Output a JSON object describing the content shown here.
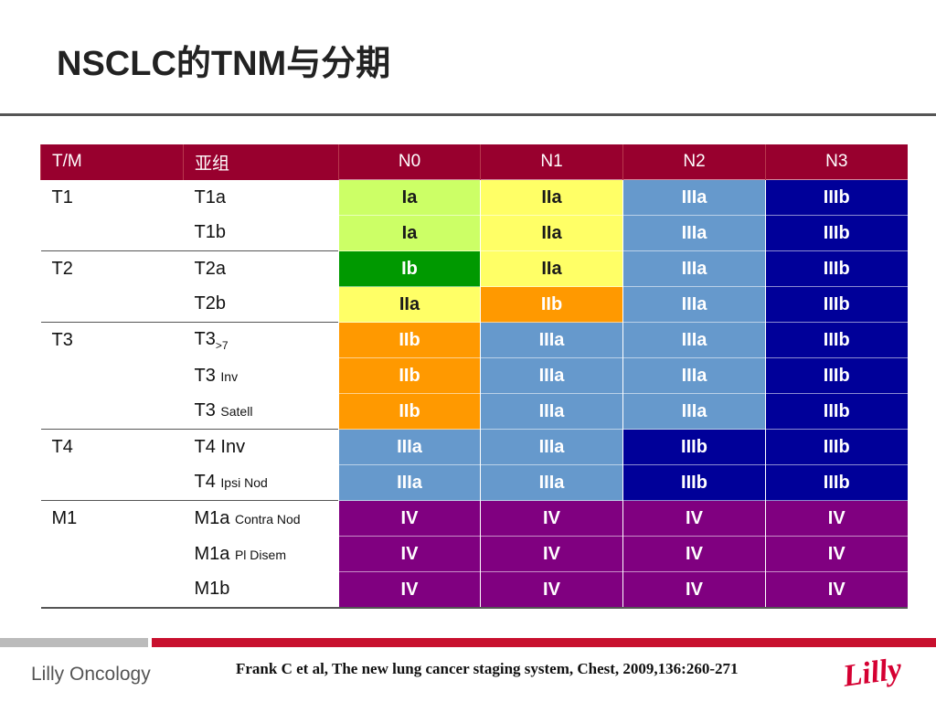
{
  "title": "NSCLC的TNM与分期",
  "table": {
    "headers": [
      "T/M",
      "亚组",
      "N0",
      "N1",
      "N2",
      "N3"
    ],
    "rows": [
      {
        "t": "T1",
        "sub": "T1a",
        "sub_suffix": "",
        "sub_style": "",
        "stages": [
          "Ia",
          "IIa",
          "IIIa",
          "IIIb"
        ]
      },
      {
        "t": "",
        "sub": "T1b",
        "sub_suffix": "",
        "sub_style": "",
        "stages": [
          "Ia",
          "IIa",
          "IIIa",
          "IIIb"
        ]
      },
      {
        "t": "T2",
        "sub": "T2a",
        "sub_suffix": "",
        "sub_style": "",
        "stages": [
          "Ib",
          "IIa",
          "IIIa",
          "IIIb"
        ]
      },
      {
        "t": "",
        "sub": "T2b",
        "sub_suffix": "",
        "sub_style": "",
        "stages": [
          "IIa",
          "IIb",
          "IIIa",
          "IIIb"
        ]
      },
      {
        "t": "T3",
        "sub": "T3",
        "sub_suffix": ">7",
        "sub_style": "sub",
        "stages": [
          "IIb",
          "IIIa",
          "IIIa",
          "IIIb"
        ]
      },
      {
        "t": "",
        "sub": "T3 ",
        "sub_suffix": "Inv",
        "sub_style": "small",
        "stages": [
          "IIb",
          "IIIa",
          "IIIa",
          "IIIb"
        ]
      },
      {
        "t": "",
        "sub": "T3 ",
        "sub_suffix": "Satell",
        "sub_style": "small",
        "stages": [
          "IIb",
          "IIIa",
          "IIIa",
          "IIIb"
        ]
      },
      {
        "t": "T4",
        "sub": "T4 Inv",
        "sub_suffix": "",
        "sub_style": "",
        "stages": [
          "IIIa",
          "IIIa",
          "IIIb",
          "IIIb"
        ]
      },
      {
        "t": "",
        "sub": "T4 ",
        "sub_suffix": "Ipsi Nod",
        "sub_style": "small",
        "stages": [
          "IIIa",
          "IIIa",
          "IIIb",
          "IIIb"
        ]
      },
      {
        "t": "M1",
        "sub": "M1a ",
        "sub_suffix": "Contra Nod",
        "sub_style": "small",
        "stages": [
          "IV",
          "IV",
          "IV",
          "IV"
        ]
      },
      {
        "t": "",
        "sub": "M1a ",
        "sub_suffix": "Pl Disem",
        "sub_style": "small",
        "stages": [
          "IV",
          "IV",
          "IV",
          "IV"
        ]
      },
      {
        "t": "",
        "sub": "M1b",
        "sub_suffix": "",
        "sub_style": "",
        "stages": [
          "IV",
          "IV",
          "IV",
          "IV"
        ]
      }
    ]
  },
  "stage_colors": {
    "Ia": {
      "bg": "#ccff66",
      "fg": "#1a1a1a"
    },
    "Ib": {
      "bg": "#009900",
      "fg": "#ffffff"
    },
    "IIa": {
      "bg": "#ffff66",
      "fg": "#1a1a1a"
    },
    "IIb": {
      "bg": "#ff9900",
      "fg": "#ffffff"
    },
    "IIIa": {
      "bg": "#6699cc",
      "fg": "#ffffff"
    },
    "IIIb": {
      "bg": "#000099",
      "fg": "#ffffff"
    },
    "IV": {
      "bg": "#800080",
      "fg": "#ffffff"
    }
  },
  "footer": {
    "brand": "Lilly Oncology",
    "citation": "Frank C et al, The new lung cancer staging system, Chest, 2009,136:260-271",
    "logo": "Lilly"
  }
}
